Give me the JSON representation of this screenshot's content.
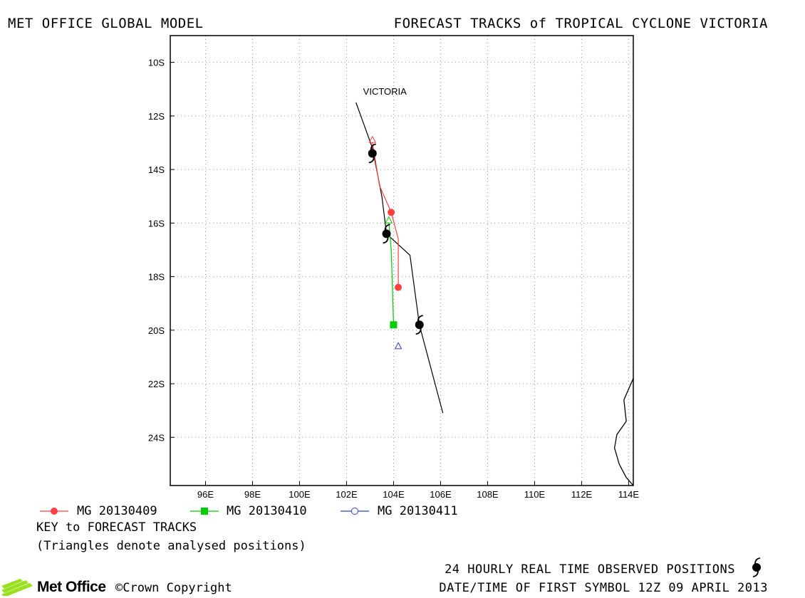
{
  "header": {
    "left_title": "MET OFFICE GLOBAL MODEL",
    "right_title": "FORECAST TRACKS of TROPICAL CYCLONE VICTORIA"
  },
  "map": {
    "lon_range": [
      94.5,
      114.2
    ],
    "lat_range": [
      -9.0,
      -25.8
    ],
    "lon_ticks": [
      "96E",
      "98E",
      "100E",
      "102E",
      "104E",
      "106E",
      "108E",
      "110E",
      "112E",
      "114E"
    ],
    "lat_ticks": [
      "10S",
      "12S",
      "14S",
      "16S",
      "18S",
      "20S",
      "22S",
      "24S"
    ],
    "grid": "dotted",
    "storm_label": "VICTORIA",
    "observed_track": [
      {
        "lon": 102.4,
        "lat": -11.5
      },
      {
        "lon": 103.1,
        "lat": -13.2
      },
      {
        "lon": 103.5,
        "lat": -15.0
      },
      {
        "lon": 103.7,
        "lat": -16.4
      },
      {
        "lon": 104.7,
        "lat": -17.2
      },
      {
        "lon": 105.1,
        "lat": -19.8
      },
      {
        "lon": 106.1,
        "lat": -23.1
      }
    ],
    "observed_symbols": [
      {
        "lon": 103.1,
        "lat": -13.4
      },
      {
        "lon": 103.7,
        "lat": -16.4
      },
      {
        "lon": 105.1,
        "lat": -19.8
      }
    ],
    "forecasts": [
      {
        "name": "MG 20130409",
        "color": "#ff4040",
        "marker": "circle",
        "track": [
          {
            "lon": 103.1,
            "lat": -13.0
          },
          {
            "lon": 103.4,
            "lat": -14.6
          },
          {
            "lon": 103.9,
            "lat": -15.6
          },
          {
            "lon": 104.2,
            "lat": -16.6
          },
          {
            "lon": 104.2,
            "lat": -18.4
          }
        ],
        "points": [
          {
            "lon": 103.9,
            "lat": -15.6
          },
          {
            "lon": 104.2,
            "lat": -18.4
          }
        ],
        "triangle": {
          "lon": 103.1,
          "lat": -12.9
        }
      },
      {
        "name": "MG 20130410",
        "color": "#00cc00",
        "marker": "square",
        "track": [
          {
            "lon": 103.8,
            "lat": -16.0
          },
          {
            "lon": 103.9,
            "lat": -17.0
          },
          {
            "lon": 104.0,
            "lat": -19.8
          }
        ],
        "points": [
          {
            "lon": 104.0,
            "lat": -19.8
          }
        ],
        "triangle": {
          "lon": 103.8,
          "lat": -15.9
        }
      },
      {
        "name": "MG 20130411",
        "color": "#3040c0",
        "marker": "open-circle",
        "track": [],
        "points": [],
        "triangle": {
          "lon": 104.2,
          "lat": -20.6
        }
      }
    ],
    "coastline": [
      {
        "lon": 114.2,
        "lat": -21.8
      },
      {
        "lon": 113.8,
        "lat": -22.6
      },
      {
        "lon": 113.9,
        "lat": -23.4
      },
      {
        "lon": 113.5,
        "lat": -23.9
      },
      {
        "lon": 113.4,
        "lat": -24.4
      },
      {
        "lon": 113.6,
        "lat": -25.0
      },
      {
        "lon": 113.9,
        "lat": -25.5
      },
      {
        "lon": 114.2,
        "lat": -25.8
      }
    ]
  },
  "key": {
    "title": "KEY to FORECAST TRACKS",
    "note": "(Triangles denote analysed positions)"
  },
  "footer": {
    "observed_label": "24 HOURLY REAL TIME OBSERVED POSITIONS",
    "date_label": "DATE/TIME OF FIRST SYMBOL 12Z 09 APRIL 2013",
    "logo_text": "Met Office",
    "copyright": "©Crown Copyright"
  },
  "colors": {
    "observed": "#000000",
    "grid": "#9a9a9a"
  }
}
